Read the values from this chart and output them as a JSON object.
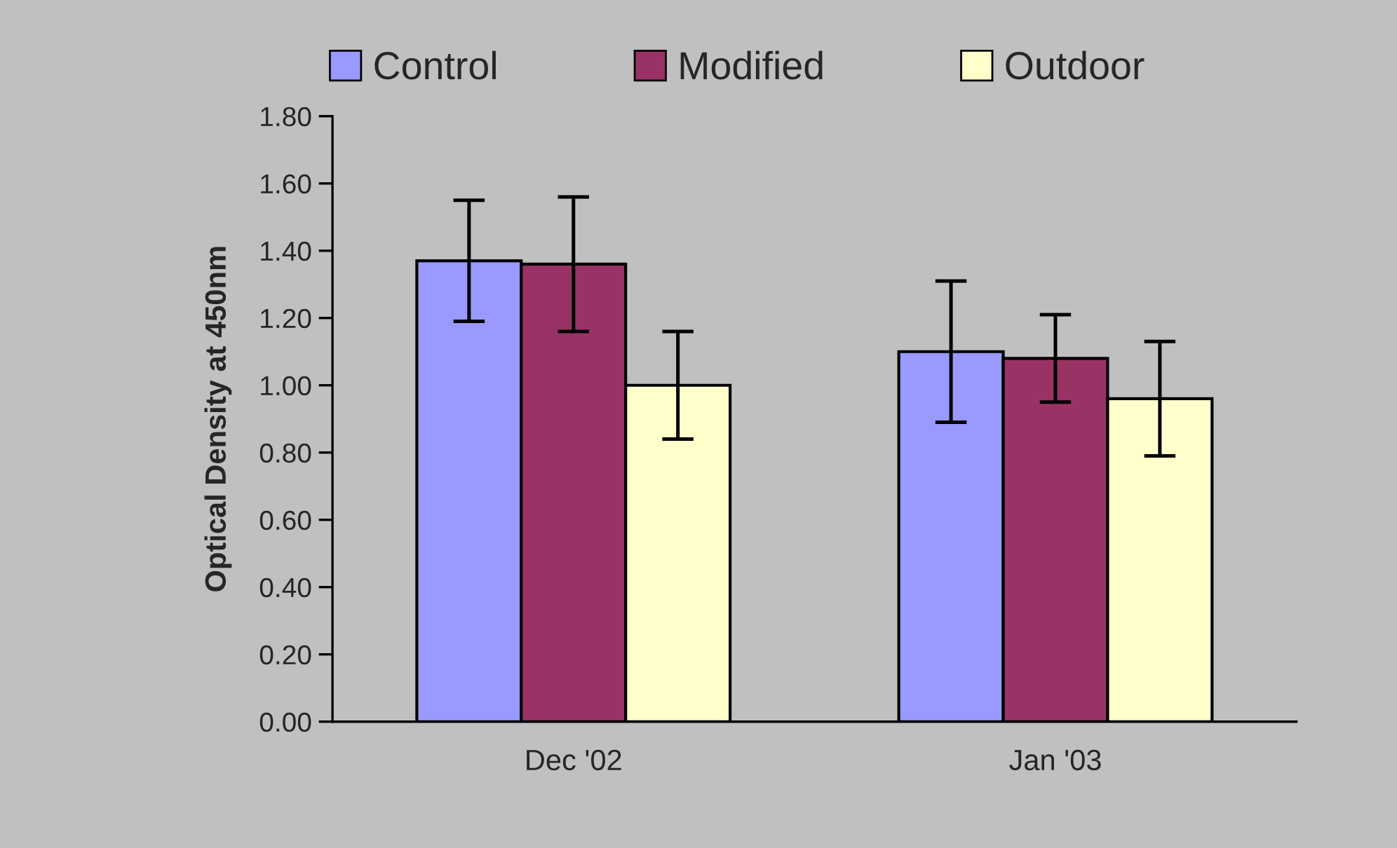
{
  "chart_data": {
    "type": "bar",
    "ylabel": "Optical Density at 450nm",
    "categories": [
      "Dec '02",
      "Jan '03"
    ],
    "series": [
      {
        "name": "Control",
        "color": "#9999ff",
        "values": [
          1.37,
          1.1
        ],
        "errors": [
          0.18,
          0.21
        ]
      },
      {
        "name": "Modified",
        "color": "#993366",
        "values": [
          1.36,
          1.08
        ],
        "errors": [
          0.2,
          0.13
        ]
      },
      {
        "name": "Outdoor",
        "color": "#ffffcc",
        "values": [
          1.0,
          0.96
        ],
        "errors": [
          0.16,
          0.17
        ]
      }
    ],
    "ylim": [
      0,
      1.8
    ],
    "yticks": [
      {
        "value": 0,
        "label": "0.00"
      },
      {
        "value": 0.2,
        "label": "0.20"
      },
      {
        "value": 0.4,
        "label": "0.40"
      },
      {
        "value": 0.6,
        "label": "0.60"
      },
      {
        "value": 0.8,
        "label": "0.80"
      },
      {
        "value": 1.0,
        "label": "1.00"
      },
      {
        "value": 1.2,
        "label": "1.20"
      },
      {
        "value": 1.4,
        "label": "1.40"
      },
      {
        "value": 1.6,
        "label": "1.60"
      },
      {
        "value": 1.8,
        "label": "1.80"
      }
    ],
    "grid": false,
    "legend": "top"
  }
}
